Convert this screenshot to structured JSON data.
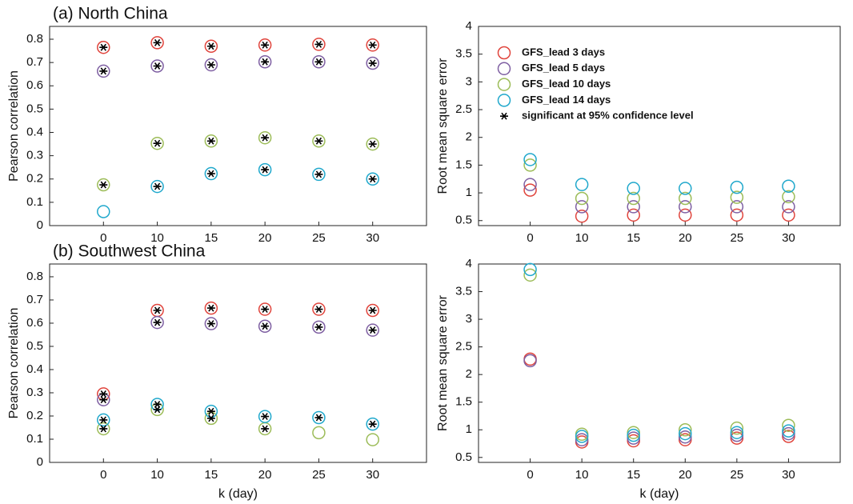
{
  "chart_data": [
    {
      "type": "scatter",
      "title": "(a) North China",
      "ylabel": "Pearson correlation",
      "categories": [
        0,
        10,
        15,
        20,
        25,
        30
      ],
      "ylim": [
        0,
        0.855
      ],
      "yticks": [
        0,
        0.1,
        0.2,
        0.3,
        0.4,
        0.5,
        0.6,
        0.7,
        0.8
      ],
      "series": [
        {
          "name": "GFS_lead 3 days",
          "color": "#e0443c",
          "values": [
            0.765,
            0.785,
            0.77,
            0.775,
            0.778,
            0.775
          ],
          "significant": [
            true,
            true,
            true,
            true,
            true,
            true
          ]
        },
        {
          "name": "GFS_lead 5 days",
          "color": "#7e5fa2",
          "values": [
            0.663,
            0.685,
            0.69,
            0.703,
            0.703,
            0.697
          ],
          "significant": [
            true,
            true,
            true,
            true,
            true,
            true
          ]
        },
        {
          "name": "GFS_lead 10 days",
          "color": "#9cbc58",
          "values": [
            0.175,
            0.353,
            0.363,
            0.377,
            0.363,
            0.35
          ],
          "significant": [
            true,
            true,
            true,
            true,
            true,
            true
          ]
        },
        {
          "name": "GFS_lead 14 days",
          "color": "#20a8cc",
          "values": [
            0.06,
            0.168,
            0.223,
            0.24,
            0.22,
            0.2
          ],
          "significant": [
            false,
            true,
            true,
            true,
            true,
            true
          ]
        }
      ]
    },
    {
      "type": "scatter",
      "ylabel": "Root mean square error",
      "legend": "upper left",
      "significance_label": "significant at 95% confidence level",
      "categories": [
        0,
        10,
        15,
        20,
        25,
        30
      ],
      "ylim": [
        0.41,
        4
      ],
      "yticks": [
        0.5,
        1,
        1.5,
        2,
        2.5,
        3,
        3.5,
        4
      ],
      "series": [
        {
          "name": "GFS_lead 3 days",
          "color": "#e0443c",
          "values": [
            1.05,
            0.58,
            0.6,
            0.6,
            0.6,
            0.6
          ]
        },
        {
          "name": "GFS_lead 5 days",
          "color": "#7e5fa2",
          "values": [
            1.15,
            0.75,
            0.75,
            0.75,
            0.75,
            0.75
          ]
        },
        {
          "name": "GFS_lead 10 days",
          "color": "#9cbc58",
          "values": [
            1.5,
            0.9,
            0.9,
            0.9,
            0.92,
            0.93
          ]
        },
        {
          "name": "GFS_lead 14 days",
          "color": "#20a8cc",
          "values": [
            1.6,
            1.15,
            1.08,
            1.08,
            1.1,
            1.12
          ]
        }
      ]
    },
    {
      "type": "scatter",
      "title": "(b) Southwest China",
      "ylabel": "Pearson correlation",
      "xlabel": "k (day)",
      "categories": [
        0,
        10,
        15,
        20,
        25,
        30
      ],
      "ylim": [
        0,
        0.855
      ],
      "yticks": [
        0,
        0.1,
        0.2,
        0.3,
        0.4,
        0.5,
        0.6,
        0.7,
        0.8
      ],
      "series": [
        {
          "name": "GFS_lead 3 days",
          "color": "#e0443c",
          "values": [
            0.295,
            0.655,
            0.665,
            0.66,
            0.66,
            0.655
          ],
          "significant": [
            true,
            true,
            true,
            true,
            true,
            true
          ]
        },
        {
          "name": "GFS_lead 5 days",
          "color": "#7e5fa2",
          "values": [
            0.27,
            0.603,
            0.598,
            0.587,
            0.583,
            0.57
          ],
          "significant": [
            true,
            true,
            true,
            true,
            true,
            true
          ]
        },
        {
          "name": "GFS_lead 10 days",
          "color": "#9cbc58",
          "values": [
            0.145,
            0.228,
            0.19,
            0.145,
            0.128,
            0.098
          ],
          "significant": [
            true,
            true,
            true,
            true,
            false,
            false
          ]
        },
        {
          "name": "GFS_lead 14 days",
          "color": "#20a8cc",
          "values": [
            0.183,
            0.25,
            0.22,
            0.198,
            0.193,
            0.165
          ],
          "significant": [
            true,
            true,
            true,
            true,
            true,
            true
          ]
        }
      ]
    },
    {
      "type": "scatter",
      "ylabel": "Root mean square error",
      "xlabel": "k (day)",
      "categories": [
        0,
        10,
        15,
        20,
        25,
        30
      ],
      "ylim": [
        0.41,
        4
      ],
      "yticks": [
        0.5,
        1,
        1.5,
        2,
        2.5,
        3,
        3.5,
        4
      ],
      "series": [
        {
          "name": "GFS_lead 3 days",
          "color": "#e0443c",
          "values": [
            2.28,
            0.78,
            0.8,
            0.82,
            0.85,
            0.88
          ]
        },
        {
          "name": "GFS_lead 5 days",
          "color": "#7e5fa2",
          "values": [
            2.25,
            0.82,
            0.85,
            0.87,
            0.9,
            0.93
          ]
        },
        {
          "name": "GFS_lead 10 days",
          "color": "#9cbc58",
          "values": [
            3.8,
            0.92,
            0.95,
            1.0,
            1.03,
            1.08
          ]
        },
        {
          "name": "GFS_lead 14 days",
          "color": "#20a8cc",
          "values": [
            3.9,
            0.88,
            0.9,
            0.93,
            0.95,
            0.98
          ]
        }
      ]
    }
  ]
}
